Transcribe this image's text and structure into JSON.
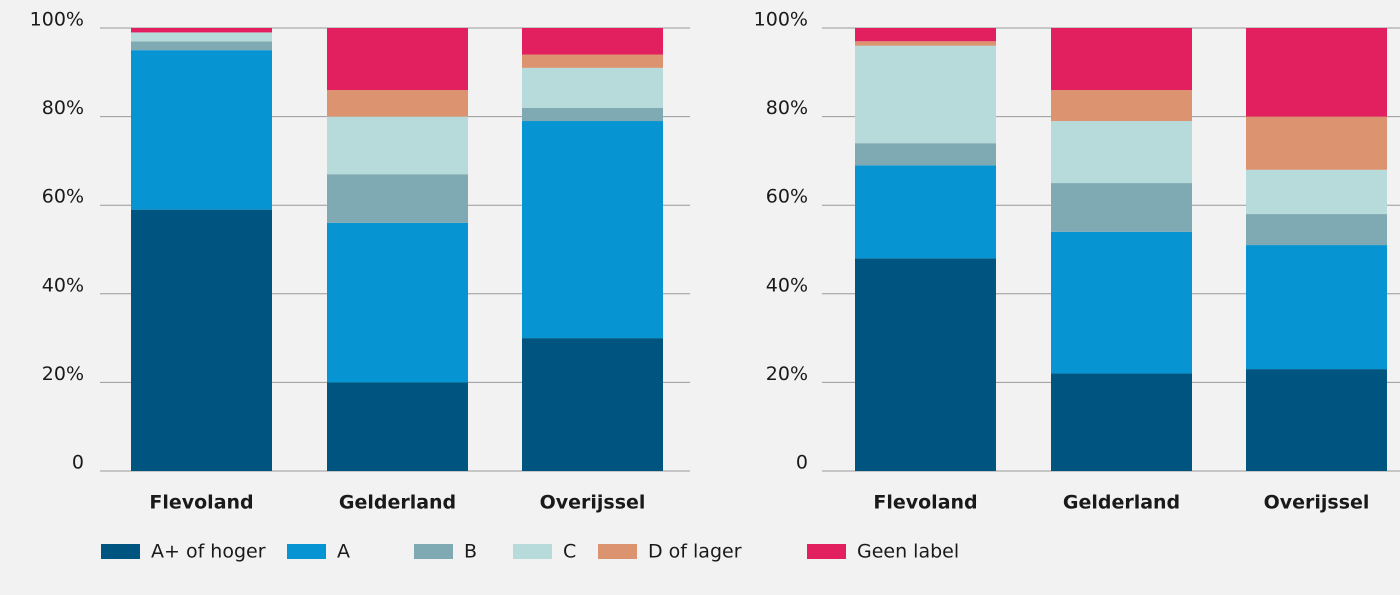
{
  "chart_data": [
    {
      "type": "stacked_bar",
      "categories": [
        "Flevoland",
        "Gelderland",
        "Overijssel"
      ],
      "series": [
        {
          "name": "A+ of hoger",
          "color": "#005580",
          "values": [
            59,
            20,
            30
          ]
        },
        {
          "name": "A",
          "color": "#0694d2",
          "values": [
            36,
            36,
            49
          ]
        },
        {
          "name": "B",
          "color": "#80aab3",
          "values": [
            2,
            11,
            3
          ]
        },
        {
          "name": "C",
          "color": "#b7dbdb",
          "values": [
            2,
            13,
            9
          ]
        },
        {
          "name": "D of lager",
          "color": "#db9370",
          "values": [
            0,
            6,
            3
          ]
        },
        {
          "name": "Geen label",
          "color": "#e3205f",
          "values": [
            1,
            14,
            6
          ]
        }
      ],
      "ylim": [
        0,
        100
      ],
      "yticks": [
        0,
        {
          "value": 20,
          "label": "20%"
        },
        {
          "value": 40,
          "label": "40%"
        },
        {
          "value": 60,
          "label": "60%"
        },
        {
          "value": 80,
          "label": "80%"
        },
        {
          "value": 100,
          "label": "100%"
        }
      ],
      "grid": true
    },
    {
      "type": "stacked_bar",
      "categories": [
        "Flevoland",
        "Gelderland",
        "Overijssel"
      ],
      "series": [
        {
          "name": "A+ of hoger",
          "color": "#005580",
          "values": [
            48,
            22,
            23
          ]
        },
        {
          "name": "A",
          "color": "#0694d2",
          "values": [
            21,
            32,
            28
          ]
        },
        {
          "name": "B",
          "color": "#80aab3",
          "values": [
            5,
            11,
            7
          ]
        },
        {
          "name": "C",
          "color": "#b7dbdb",
          "values": [
            22,
            14,
            10
          ]
        },
        {
          "name": "D of lager",
          "color": "#db9370",
          "values": [
            1,
            7,
            12
          ]
        },
        {
          "name": "Geen label",
          "color": "#e3205f",
          "values": [
            3,
            14,
            20
          ]
        }
      ],
      "ylim": [
        0,
        100
      ],
      "yticks": [
        0,
        {
          "value": 20,
          "label": "20%"
        },
        {
          "value": 40,
          "label": "40%"
        },
        {
          "value": 60,
          "label": "60%"
        },
        {
          "value": 80,
          "label": "80%"
        },
        {
          "value": 100,
          "label": "100%"
        }
      ],
      "grid": true
    }
  ]
}
